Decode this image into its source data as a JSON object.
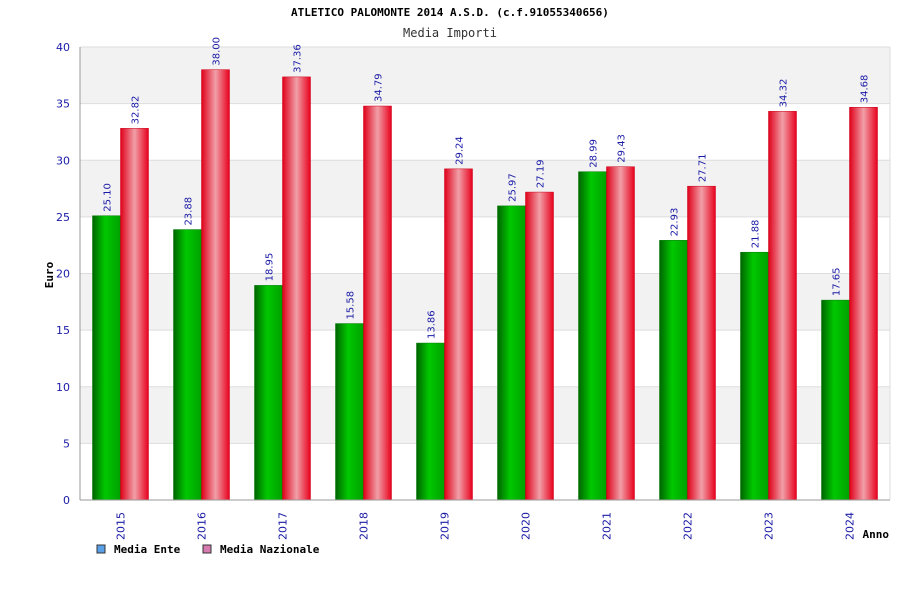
{
  "chart_data": {
    "type": "bar",
    "title": "ATLETICO PALOMONTE 2014 A.S.D. (c.f.91055340656)",
    "subtitle": "Media Importi",
    "xlabel": "Anno",
    "ylabel": "Euro",
    "ylim": [
      0,
      40
    ],
    "yticks": [
      0,
      5,
      10,
      15,
      20,
      25,
      30,
      35,
      40
    ],
    "grid": true,
    "legend_position": "bottom-left",
    "categories": [
      "2015",
      "2016",
      "2017",
      "2018",
      "2019",
      "2020",
      "2021",
      "2022",
      "2023",
      "2024"
    ],
    "series": [
      {
        "name": "Media Ente",
        "color": "#00a000",
        "legend_color": "#5aa0e6",
        "values": [
          25.1,
          23.88,
          18.95,
          15.58,
          13.86,
          25.97,
          28.99,
          22.93,
          21.88,
          17.65
        ],
        "labels": [
          "25.10",
          "23.88",
          "18.95",
          "15.58",
          "13.86",
          "25.97",
          "28.99",
          "22.93",
          "21.88",
          "17.65"
        ]
      },
      {
        "name": "Media Nazionale",
        "color": "#e8001c",
        "legend_color": "#d67ab0",
        "values": [
          32.82,
          38.0,
          37.36,
          34.79,
          29.24,
          27.19,
          29.43,
          27.71,
          34.32,
          34.68
        ],
        "labels": [
          "32.82",
          "38.00",
          "37.36",
          "34.79",
          "29.24",
          "27.19",
          "29.43",
          "27.71",
          "34.32",
          "34.68"
        ]
      }
    ]
  }
}
